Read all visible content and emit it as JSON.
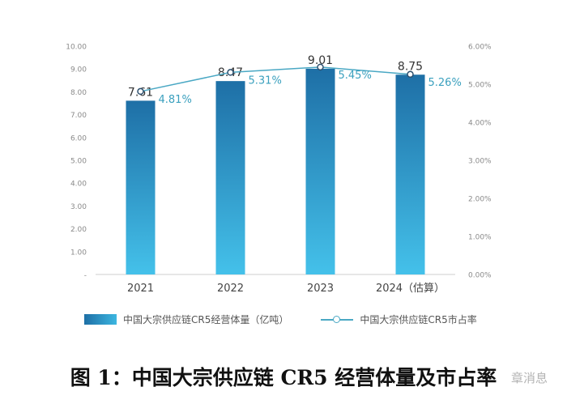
{
  "chart_data": {
    "type": "bar",
    "categories": [
      "2021",
      "2022",
      "2023",
      "2024（估算）"
    ],
    "series": [
      {
        "name": "中国大宗供应链CR5经营体量（亿吨）",
        "kind": "bar",
        "axis": "left",
        "values": [
          7.61,
          8.47,
          9.01,
          8.75
        ],
        "labels": [
          "7.61",
          "8.47",
          "9.01",
          "8.75"
        ]
      },
      {
        "name": "中国大宗供应链CR5市占率",
        "kind": "line",
        "axis": "right",
        "values": [
          4.81,
          5.31,
          5.45,
          5.26
        ],
        "labels": [
          "4.81%",
          "5.31%",
          "5.45%",
          "5.26%"
        ]
      }
    ],
    "left_axis": {
      "ylim": [
        0,
        10
      ],
      "ticks": [
        "-",
        "1.00",
        "2.00",
        "3.00",
        "4.00",
        "5.00",
        "6.00",
        "7.00",
        "8.00",
        "9.00",
        "10.00"
      ]
    },
    "right_axis": {
      "ylim": [
        0,
        6
      ],
      "ticks": [
        "0.00%",
        "1.00%",
        "2.00%",
        "3.00%",
        "4.00%",
        "5.00%",
        "6.00%"
      ]
    },
    "grid": false,
    "legend_position": "bottom",
    "bar_color": "#2a8fc4",
    "line_color": "#4aa8c4"
  },
  "caption": "图 1：中国大宗供应链 CR5 经营体量及市占率",
  "watermark": "章消息"
}
